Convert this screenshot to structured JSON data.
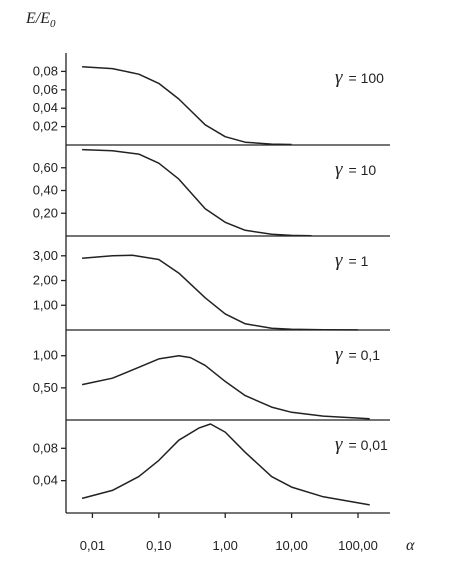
{
  "chart_data": {
    "type": "line",
    "ylabel": "E/E",
    "ylabel_sub": "0",
    "xlabel": "α",
    "x_scale": "log",
    "xlim": [
      0.004,
      200
    ],
    "x_ticks": [
      {
        "value": 0.01,
        "label": "0,01"
      },
      {
        "value": 0.1,
        "label": "0,10"
      },
      {
        "value": 1,
        "label": "1,00"
      },
      {
        "value": 10,
        "label": "10,00"
      },
      {
        "value": 100,
        "label": "100,00"
      }
    ],
    "panels": [
      {
        "label_symbol": "γ",
        "label_value": "= 100",
        "ylim": [
          0,
          0.1
        ],
        "y_ticks": [
          {
            "value": 0.02,
            "label": "0,02"
          },
          {
            "value": 0.04,
            "label": "0,04"
          },
          {
            "value": 0.06,
            "label": "0,06"
          },
          {
            "value": 0.08,
            "label": "0,08"
          }
        ],
        "x": [
          0.007,
          0.02,
          0.05,
          0.1,
          0.2,
          0.5,
          1,
          2,
          5,
          10
        ],
        "y": [
          0.085,
          0.083,
          0.077,
          0.067,
          0.05,
          0.022,
          0.009,
          0.003,
          0.001,
          0.0005
        ]
      },
      {
        "label_symbol": "γ",
        "label_value": "= 10",
        "ylim": [
          0,
          0.8
        ],
        "y_ticks": [
          {
            "value": 0.2,
            "label": "0,20"
          },
          {
            "value": 0.4,
            "label": "0,40"
          },
          {
            "value": 0.6,
            "label": "0,60"
          }
        ],
        "x": [
          0.007,
          0.02,
          0.05,
          0.1,
          0.2,
          0.5,
          1,
          2,
          5,
          10,
          20
        ],
        "y": [
          0.76,
          0.75,
          0.72,
          0.64,
          0.5,
          0.24,
          0.12,
          0.05,
          0.015,
          0.005,
          0.002
        ]
      },
      {
        "label_symbol": "γ",
        "label_value": "= 1",
        "ylim": [
          0,
          3.8
        ],
        "y_ticks": [
          {
            "value": 1,
            "label": "1,00"
          },
          {
            "value": 2,
            "label": "2,00"
          },
          {
            "value": 3,
            "label": "3,00"
          }
        ],
        "x": [
          0.007,
          0.02,
          0.04,
          0.1,
          0.2,
          0.5,
          1,
          2,
          5,
          10,
          30,
          100
        ],
        "y": [
          2.9,
          3.0,
          3.02,
          2.85,
          2.3,
          1.3,
          0.65,
          0.25,
          0.07,
          0.03,
          0.01,
          0.005
        ]
      },
      {
        "label_symbol": "γ",
        "label_value": "= 0,1",
        "ylim": [
          0,
          1.4
        ],
        "y_ticks": [
          {
            "value": 0.5,
            "label": "0,50"
          },
          {
            "value": 1,
            "label": "1,00"
          }
        ],
        "x": [
          0.007,
          0.02,
          0.05,
          0.1,
          0.2,
          0.3,
          0.5,
          1,
          2,
          5,
          10,
          30,
          150
        ],
        "y": [
          0.55,
          0.65,
          0.82,
          0.95,
          1.0,
          0.97,
          0.85,
          0.6,
          0.38,
          0.2,
          0.12,
          0.06,
          0.02
        ]
      },
      {
        "label_symbol": "γ",
        "label_value": "= 0,01",
        "ylim": [
          0,
          0.115
        ],
        "y_ticks": [
          {
            "value": 0.04,
            "label": "0,04"
          },
          {
            "value": 0.08,
            "label": "0,08"
          }
        ],
        "x": [
          0.007,
          0.02,
          0.05,
          0.1,
          0.2,
          0.4,
          0.6,
          1,
          2,
          5,
          10,
          30,
          150
        ],
        "y": [
          0.018,
          0.028,
          0.045,
          0.065,
          0.09,
          0.105,
          0.11,
          0.1,
          0.075,
          0.045,
          0.032,
          0.02,
          0.01
        ]
      }
    ]
  }
}
